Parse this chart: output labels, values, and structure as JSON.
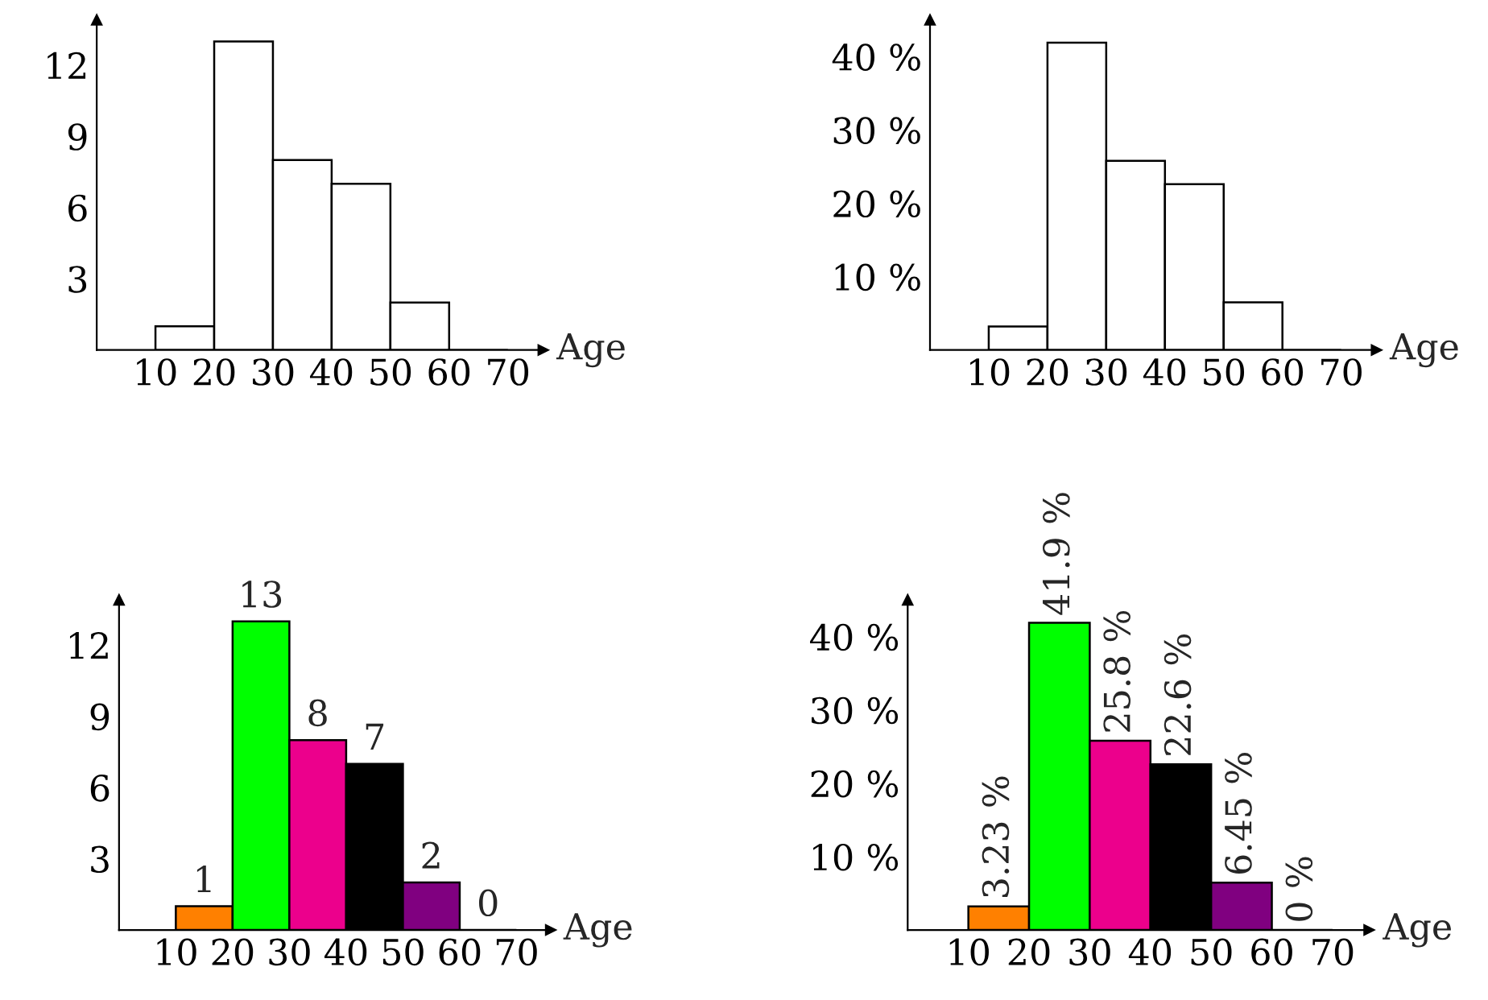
{
  "chart_data": [
    {
      "type": "histogram",
      "xlabel": "Age",
      "bins": [
        10,
        20,
        30,
        40,
        50,
        60,
        70
      ],
      "values": [
        1,
        13,
        8,
        7,
        2,
        0
      ],
      "colors": [
        "#ffffff",
        "#ffffff",
        "#ffffff",
        "#ffffff",
        "#ffffff",
        "#000000"
      ],
      "xlim": [
        0,
        76
      ],
      "ylim": [
        0,
        13.9
      ],
      "xticks": [
        10,
        20,
        30,
        40,
        50,
        60,
        70
      ],
      "yticks": [
        3,
        6,
        9,
        12
      ]
    },
    {
      "type": "histogram",
      "xlabel": "Age",
      "bins": [
        10,
        20,
        30,
        40,
        50,
        60,
        70
      ],
      "values": [
        3.2,
        41.9,
        25.8,
        22.6,
        6.5,
        0
      ],
      "colors": [
        "#ffffff",
        "#ffffff",
        "#ffffff",
        "#ffffff",
        "#ffffff",
        "#000000"
      ],
      "xlim": [
        0,
        76
      ],
      "ylim": [
        0,
        45
      ],
      "xticks": [
        10,
        20,
        30,
        40,
        50,
        60,
        70
      ],
      "yticks": [
        {
          "value": 10,
          "label": "10 %"
        },
        {
          "value": 20,
          "label": "20 %"
        },
        {
          "value": 30,
          "label": "30 %"
        },
        {
          "value": 40,
          "label": "40 %"
        }
      ]
    },
    {
      "type": "histogram",
      "xlabel": "Age",
      "bins": [
        10,
        20,
        30,
        40,
        50,
        60,
        70
      ],
      "values": [
        1,
        13,
        8,
        7,
        2,
        0
      ],
      "colors": [
        "#ff8000",
        "#00ff00",
        "#ec008c",
        "#000000",
        "#800080",
        "#000000"
      ],
      "xlim": [
        0,
        76
      ],
      "ylim": [
        0,
        13.9
      ],
      "xticks": [
        10,
        20,
        30,
        40,
        50,
        60,
        70
      ],
      "yticks": [
        3,
        6,
        9,
        12
      ],
      "data_labels": true
    },
    {
      "type": "histogram",
      "xlabel": "Age",
      "bins": [
        10,
        20,
        30,
        40,
        50,
        60,
        70
      ],
      "values": [
        3.23,
        41.9,
        25.8,
        22.6,
        6.45,
        0
      ],
      "colors": [
        "#ff8000",
        "#00ff00",
        "#ec008c",
        "#000000",
        "#800080",
        "#000000"
      ],
      "xlim": [
        0,
        76
      ],
      "ylim": [
        0,
        45
      ],
      "xticks": [
        10,
        20,
        30,
        40,
        50,
        60,
        70
      ],
      "yticks": [
        {
          "value": 10,
          "label": "10 %"
        },
        {
          "value": 20,
          "label": "20 %"
        },
        {
          "value": 30,
          "label": "30 %"
        },
        {
          "value": 40,
          "label": "40 %"
        }
      ],
      "value_labels": [
        "3.23 %",
        "41.9 %",
        "25.8 %",
        "22.6 %",
        "6.45 %",
        "0 %"
      ]
    }
  ]
}
